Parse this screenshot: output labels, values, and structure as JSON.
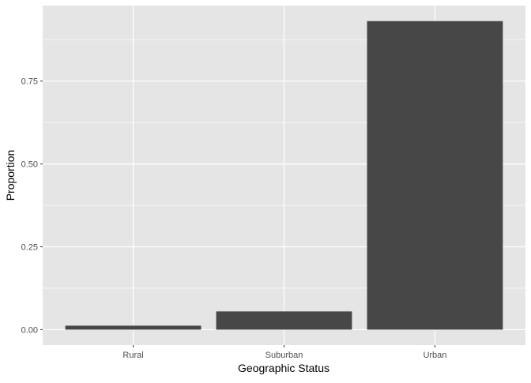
{
  "chart_data": {
    "type": "bar",
    "title": "",
    "xlabel": "Geographic Status",
    "ylabel": "Proportion",
    "categories": [
      "Rural",
      "Suburban",
      "Urban"
    ],
    "values": [
      0.012,
      0.055,
      0.931
    ],
    "ylim": [
      -0.0466,
      0.978
    ],
    "yticks": [
      0,
      0.25,
      0.5,
      0.75
    ],
    "ytick_labels": [
      "0.00",
      "0.25",
      "0.50",
      "0.75"
    ],
    "grid": true,
    "legend": "none",
    "colors": {
      "bar": "#474747",
      "panel": "#E5E5E5",
      "grid": "#FFFFFF",
      "text": "#4D4D4D"
    }
  }
}
